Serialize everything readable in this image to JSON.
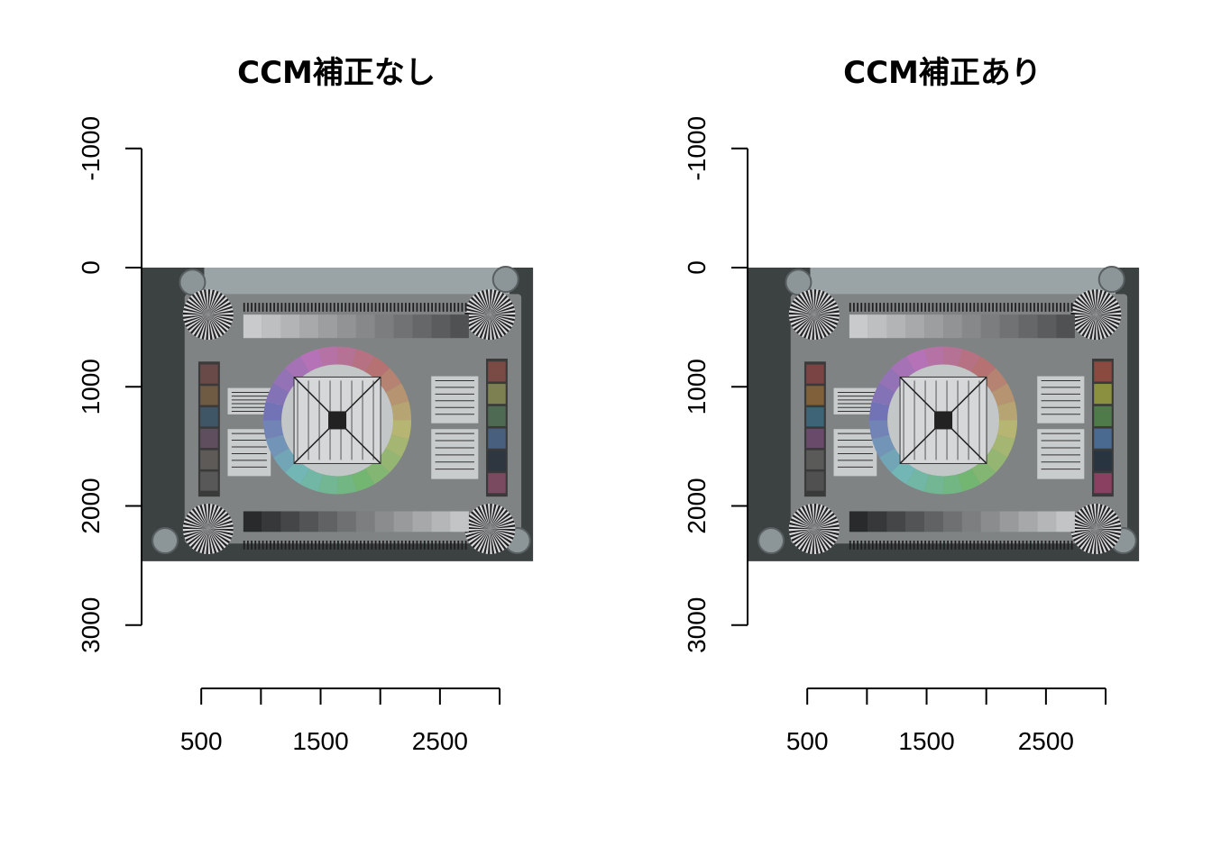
{
  "chart_data": [
    {
      "type": "image",
      "title": "CCM補正なし",
      "xlabel": "",
      "ylabel": "",
      "x_ticks": [
        500,
        1000,
        1500,
        2000,
        2500,
        3000
      ],
      "x_tick_labels": [
        "500",
        "",
        "1500",
        "",
        "2500",
        ""
      ],
      "y_ticks": [
        -1000,
        0,
        1000,
        2000,
        3000
      ],
      "y_tick_labels": [
        "-1000",
        "0",
        "1000",
        "2000",
        "3000"
      ],
      "ylim": [
        -1000,
        3000
      ],
      "image_extent": {
        "x": [
          0,
          3280
        ],
        "y": [
          0,
          2464
        ]
      },
      "patches_left": [
        "#6a4a48",
        "#6f5a44",
        "#3f5666",
        "#5e4e5e",
        "#5d5a57",
        "#585858"
      ],
      "patches_right": [
        "#7a4a44",
        "#7d8050",
        "#4f6a52",
        "#48607e",
        "#2e3640",
        "#7a4a60"
      ],
      "frame_color": "#3a3a3a"
    },
    {
      "type": "image",
      "title": "CCM補正あり",
      "xlabel": "",
      "ylabel": "",
      "x_ticks": [
        500,
        1000,
        1500,
        2000,
        2500,
        3000
      ],
      "x_tick_labels": [
        "500",
        "",
        "1500",
        "",
        "2500",
        ""
      ],
      "y_ticks": [
        -1000,
        0,
        1000,
        2000,
        3000
      ],
      "y_tick_labels": [
        "-1000",
        "0",
        "1000",
        "2000",
        "3000"
      ],
      "ylim": [
        -1000,
        3000
      ],
      "image_extent": {
        "x": [
          0,
          3280
        ],
        "y": [
          0,
          2464
        ]
      },
      "patches_left": [
        "#7a4444",
        "#80603a",
        "#3e6478",
        "#6a4a6a",
        "#5a5a58",
        "#505050"
      ],
      "patches_right": [
        "#8a4a40",
        "#8a9040",
        "#4f7a4a",
        "#4a6a90",
        "#283440",
        "#8a4060"
      ],
      "frame_color": "#3a3a3a"
    }
  ]
}
